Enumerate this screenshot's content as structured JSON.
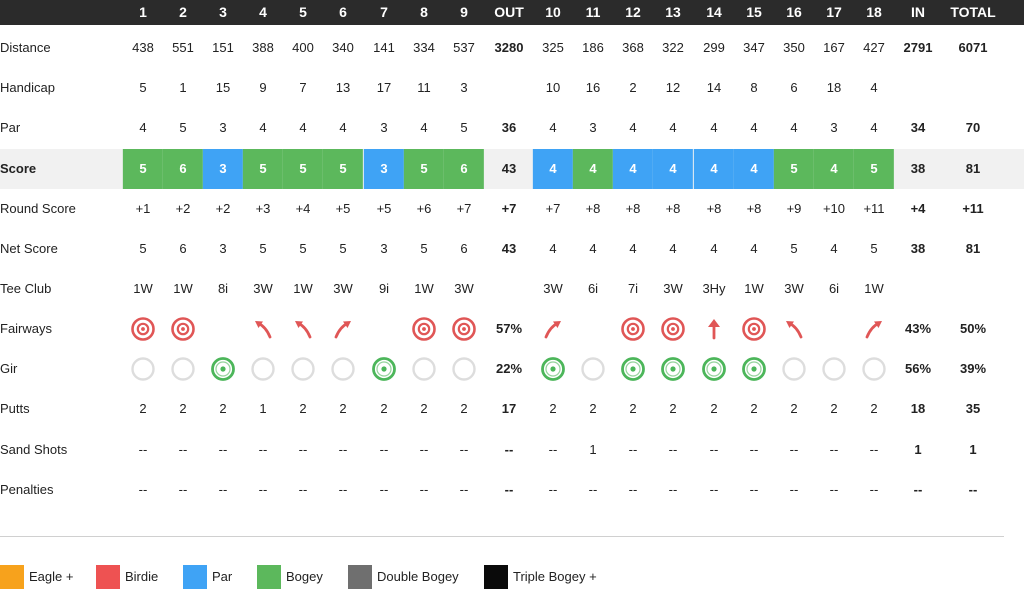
{
  "colors": {
    "eagle": "#f7a21c",
    "birdie": "#ee5252",
    "par": "#3fa3f5",
    "bogey": "#5cb85c",
    "double_bogey": "#6f6f6f",
    "triple_bogey": "#0a0a0a",
    "fairway_red": "#e05656",
    "gir_green": "#4cb65a",
    "gir_empty": "#dddddd"
  },
  "header": {
    "holes": [
      "1",
      "2",
      "3",
      "4",
      "5",
      "6",
      "7",
      "8",
      "9",
      "10",
      "11",
      "12",
      "13",
      "14",
      "15",
      "16",
      "17",
      "18"
    ],
    "out": "OUT",
    "in": "IN",
    "total": "TOTAL"
  },
  "rows": {
    "distance": {
      "label": "Distance",
      "holes": [
        "438",
        "551",
        "151",
        "388",
        "400",
        "340",
        "141",
        "334",
        "537",
        "325",
        "186",
        "368",
        "322",
        "299",
        "347",
        "350",
        "167",
        "427"
      ],
      "out": "3280",
      "in": "2791",
      "total": "6071"
    },
    "handicap": {
      "label": "Handicap",
      "holes": [
        "5",
        "1",
        "15",
        "9",
        "7",
        "13",
        "17",
        "11",
        "3",
        "10",
        "16",
        "2",
        "12",
        "14",
        "8",
        "6",
        "18",
        "4"
      ],
      "out": "",
      "in": "",
      "total": ""
    },
    "par": {
      "label": "Par",
      "holes": [
        "4",
        "5",
        "3",
        "4",
        "4",
        "4",
        "3",
        "4",
        "5",
        "4",
        "3",
        "4",
        "4",
        "4",
        "4",
        "4",
        "3",
        "4"
      ],
      "out": "36",
      "in": "34",
      "total": "70"
    },
    "score": {
      "label": "Score",
      "holes": [
        "5",
        "6",
        "3",
        "5",
        "5",
        "5",
        "3",
        "5",
        "6",
        "4",
        "4",
        "4",
        "4",
        "4",
        "4",
        "5",
        "4",
        "5"
      ],
      "result": [
        "bogey",
        "bogey",
        "par",
        "bogey",
        "bogey",
        "bogey",
        "par",
        "bogey",
        "bogey",
        "par",
        "bogey",
        "par",
        "par",
        "par",
        "par",
        "bogey",
        "bogey",
        "bogey"
      ],
      "out": "43",
      "in": "38",
      "total": "81"
    },
    "round_score": {
      "label": "Round Score",
      "holes": [
        "+1",
        "+2",
        "+2",
        "+3",
        "+4",
        "+5",
        "+5",
        "+6",
        "+7",
        "+7",
        "+8",
        "+8",
        "+8",
        "+8",
        "+8",
        "+9",
        "+10",
        "+11"
      ],
      "out": "+7",
      "in": "+4",
      "total": "+11"
    },
    "net_score": {
      "label": "Net Score",
      "holes": [
        "5",
        "6",
        "3",
        "5",
        "5",
        "5",
        "3",
        "5",
        "6",
        "4",
        "4",
        "4",
        "4",
        "4",
        "4",
        "5",
        "4",
        "5"
      ],
      "out": "43",
      "in": "38",
      "total": "81"
    },
    "tee_club": {
      "label": "Tee Club",
      "holes": [
        "1W",
        "1W",
        "8i",
        "3W",
        "1W",
        "3W",
        "9i",
        "1W",
        "3W",
        "3W",
        "6i",
        "7i",
        "3W",
        "3Hy",
        "1W",
        "3W",
        "6i",
        "1W"
      ],
      "out": "",
      "in": "",
      "total": ""
    },
    "fairways": {
      "label": "Fairways",
      "holes": [
        "hit-target-icon",
        "hit-target-icon",
        "",
        "miss-left-arrow-icon",
        "miss-left-arrow-icon",
        "miss-right-arrow-icon",
        "",
        "hit-target-icon",
        "hit-target-icon",
        "miss-right-arrow-icon",
        "",
        "hit-target-icon",
        "hit-target-icon",
        "miss-long-arrow-icon",
        "hit-target-icon",
        "miss-left-arrow-icon",
        "",
        "miss-right-arrow-icon"
      ],
      "out": "57%",
      "in": "43%",
      "total": "50%"
    },
    "gir": {
      "label": "Gir",
      "holes": [
        false,
        false,
        true,
        false,
        false,
        false,
        true,
        false,
        false,
        true,
        false,
        true,
        true,
        true,
        true,
        false,
        false,
        false
      ],
      "out": "22%",
      "in": "56%",
      "total": "39%"
    },
    "putts": {
      "label": "Putts",
      "holes": [
        "2",
        "2",
        "2",
        "1",
        "2",
        "2",
        "2",
        "2",
        "2",
        "2",
        "2",
        "2",
        "2",
        "2",
        "2",
        "2",
        "2",
        "2"
      ],
      "out": "17",
      "in": "18",
      "total": "35"
    },
    "sand_shots": {
      "label": "Sand Shots",
      "holes": [
        "--",
        "--",
        "--",
        "--",
        "--",
        "--",
        "--",
        "--",
        "--",
        "--",
        "1",
        "--",
        "--",
        "--",
        "--",
        "--",
        "--",
        "--"
      ],
      "out": "--",
      "in": "1",
      "total": "1"
    },
    "penalties": {
      "label": "Penalties",
      "holes": [
        "--",
        "--",
        "--",
        "--",
        "--",
        "--",
        "--",
        "--",
        "--",
        "--",
        "--",
        "--",
        "--",
        "--",
        "--",
        "--",
        "--",
        "--"
      ],
      "out": "--",
      "in": "--",
      "total": "--"
    }
  },
  "legend": [
    {
      "label": "Eagle +",
      "key": "eagle"
    },
    {
      "label": "Birdie",
      "key": "birdie"
    },
    {
      "label": "Par",
      "key": "par"
    },
    {
      "label": "Bogey",
      "key": "bogey"
    },
    {
      "label": "Double Bogey",
      "key": "double_bogey"
    },
    {
      "label": "Triple Bogey +",
      "key": "triple_bogey"
    }
  ]
}
